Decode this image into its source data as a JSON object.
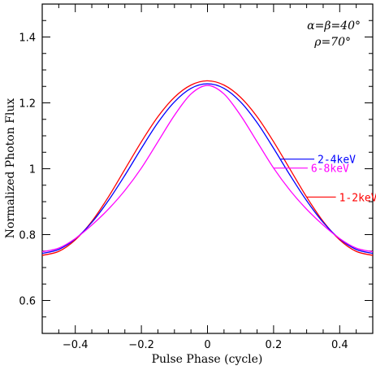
{
  "chart_data": {
    "type": "line",
    "title": "",
    "xlabel": "Pulse Phase (cycle)",
    "ylabel": "Normalized Photon Flux",
    "xlim": [
      -0.5,
      0.5
    ],
    "ylim": [
      0.5,
      1.5
    ],
    "xticks": [
      "-0.4",
      "-0.2",
      "0",
      "0.2",
      "0.4"
    ],
    "yticks": [
      "0.6",
      "0.8",
      "1",
      "1.2",
      "1.4"
    ],
    "annotations": [
      "α=β=40°",
      "ρ=70°"
    ],
    "x": [
      -0.5,
      -0.45,
      -0.4,
      -0.35,
      -0.3,
      -0.25,
      -0.2,
      -0.15,
      -0.1,
      -0.05,
      0,
      0.05,
      0.1,
      0.15,
      0.2,
      0.25,
      0.3,
      0.35,
      0.4,
      0.45,
      0.5
    ],
    "series": [
      {
        "name": "1-2keV",
        "color": "#ff0000",
        "values": [
          0.737,
          0.749,
          0.784,
          0.84,
          0.914,
          0.998,
          1.082,
          1.158,
          1.217,
          1.254,
          1.267,
          1.254,
          1.217,
          1.158,
          1.082,
          0.998,
          0.914,
          0.84,
          0.784,
          0.749,
          0.737
        ]
      },
      {
        "name": "2-4keV",
        "color": "#0000ff",
        "values": [
          0.743,
          0.755,
          0.787,
          0.837,
          0.903,
          0.98,
          1.062,
          1.14,
          1.203,
          1.244,
          1.258,
          1.244,
          1.203,
          1.14,
          1.062,
          0.98,
          0.903,
          0.837,
          0.787,
          0.755,
          0.743
        ]
      },
      {
        "name": "6-8keV",
        "color": "#ff00ff",
        "values": [
          0.748,
          0.759,
          0.788,
          0.829,
          0.877,
          0.934,
          1.002,
          1.082,
          1.162,
          1.227,
          1.253,
          1.227,
          1.162,
          1.082,
          1.002,
          0.934,
          0.877,
          0.829,
          0.788,
          0.759,
          0.748
        ]
      }
    ],
    "series_label_x": [
      0.3,
      0.22,
      0.2
    ]
  }
}
